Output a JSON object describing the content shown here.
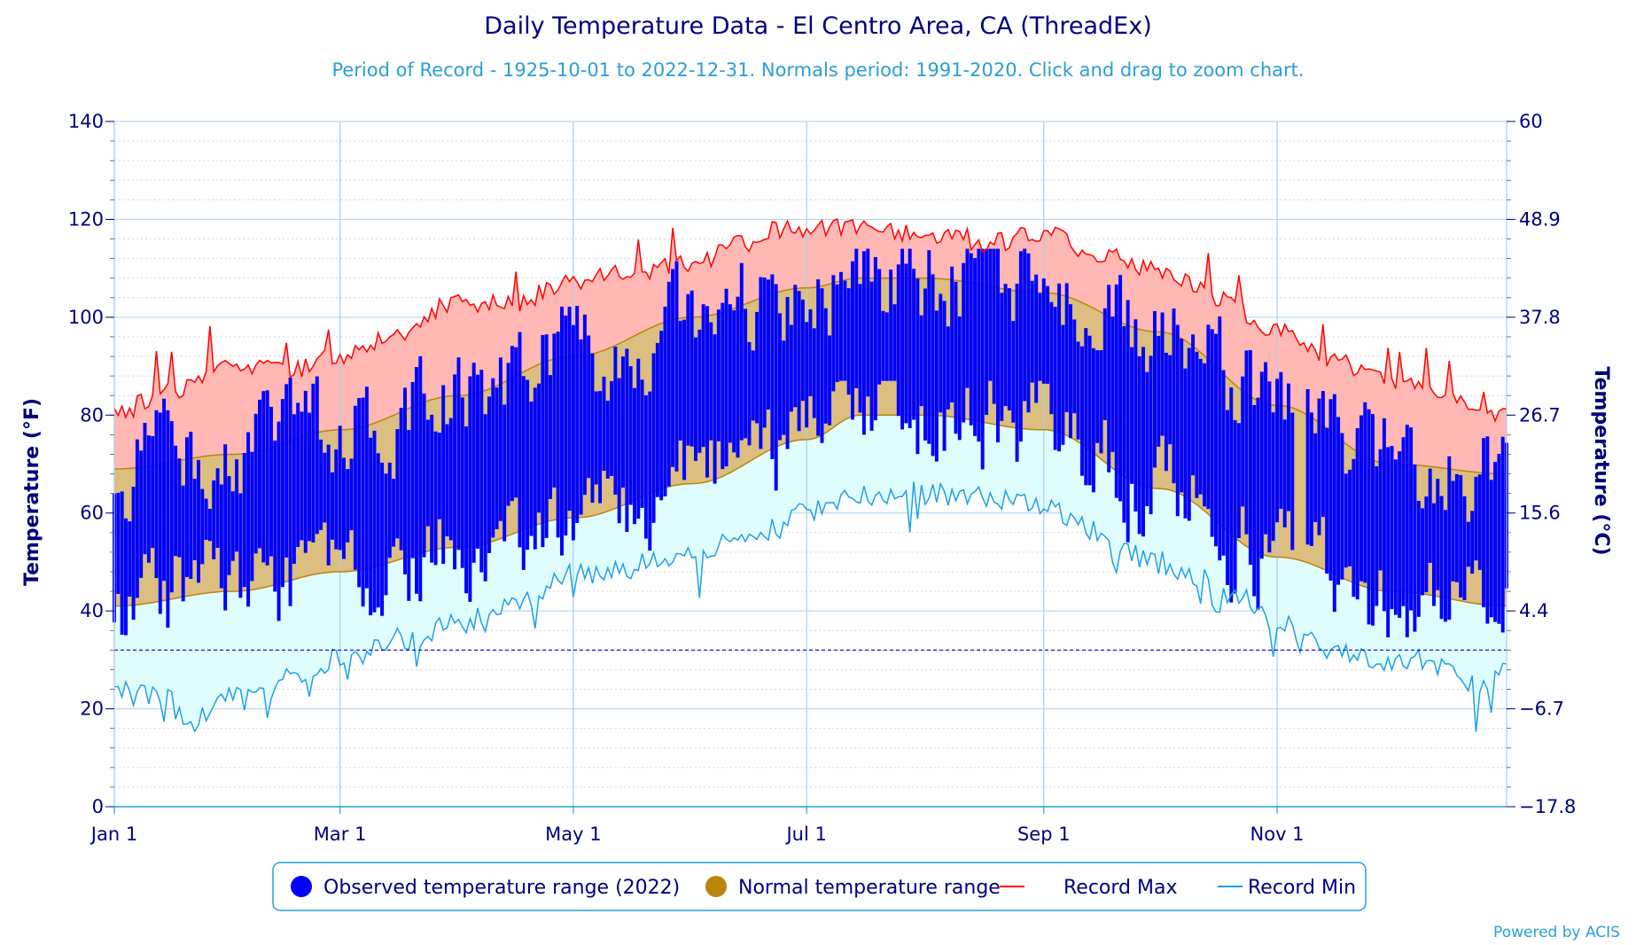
{
  "chart_data": {
    "type": "area",
    "title": "Daily Temperature Data - El Centro Area, CA (ThreadEx)",
    "subtitle": "Period of Record - 1925-10-01 to 2022-12-31. Normals period: 1991-2020. Click and drag to zoom chart.",
    "ylabel_left": "Temperature (°F)",
    "ylabel_right": "Temperature (°C)",
    "xlabel": "",
    "ylim": [
      0,
      140
    ],
    "y_ticks_f": [
      "0",
      "20",
      "40",
      "60",
      "80",
      "100",
      "120",
      "140"
    ],
    "y_ticks_c": [
      "−17.8",
      "−6.7",
      "4.4",
      "15.6",
      "26.7",
      "37.8",
      "48.9",
      "60"
    ],
    "x_tick_labels": [
      "Jan 1",
      "Mar 1",
      "May 1",
      "Jul 1",
      "Sep 1",
      "Nov 1"
    ],
    "x_tick_days": [
      1,
      60,
      121,
      182,
      244,
      305
    ],
    "freezing_line_f": 32,
    "grid": true,
    "legend_position": "bottom-center",
    "series": [
      {
        "name": "Observed temperature range (2022)",
        "color": "#0000ff",
        "kind": "daily-range-bars"
      },
      {
        "name": "Normal temperature range",
        "color": "#b8860b",
        "fill": "#d4b06a",
        "kind": "band"
      },
      {
        "name": "Record Max",
        "color": "#ff0000",
        "kind": "line"
      },
      {
        "name": "Record Min",
        "color": "#1ea0e6",
        "kind": "line"
      }
    ],
    "record_max_keypoints": {
      "day": [
        1,
        15,
        32,
        46,
        60,
        75,
        90,
        105,
        121,
        135,
        152,
        166,
        175,
        182,
        196,
        213,
        228,
        244,
        258,
        274,
        290,
        305,
        320,
        335,
        350,
        358,
        365
      ],
      "value": [
        80,
        85,
        90,
        89,
        92,
        97,
        103,
        103,
        107,
        109,
        111,
        115,
        118,
        118,
        119,
        117,
        115,
        117,
        113,
        110,
        104,
        97,
        91,
        87,
        84,
        81,
        80
      ]
    },
    "record_min_keypoints": {
      "day": [
        1,
        15,
        20,
        32,
        46,
        55,
        60,
        75,
        90,
        105,
        121,
        135,
        152,
        166,
        175,
        182,
        196,
        213,
        228,
        244,
        258,
        274,
        287,
        295,
        305,
        320,
        335,
        350,
        358,
        365
      ],
      "value": [
        25,
        22,
        16,
        24,
        27,
        29,
        30,
        34,
        37,
        42,
        47,
        49,
        52,
        55,
        57,
        60,
        64,
        64,
        63,
        62,
        56,
        50,
        46,
        43,
        38,
        32,
        30,
        29,
        24,
        27
      ]
    },
    "normal_high_keypoints": {
      "day": [
        1,
        32,
        60,
        91,
        121,
        152,
        182,
        196,
        213,
        244,
        274,
        305,
        335,
        365
      ],
      "value": [
        69,
        72,
        77,
        84,
        92,
        100,
        106,
        108,
        108,
        105,
        97,
        82,
        70,
        68
      ]
    },
    "normal_low_keypoints": {
      "day": [
        1,
        32,
        60,
        91,
        121,
        152,
        182,
        196,
        213,
        244,
        274,
        305,
        335,
        365
      ],
      "value": [
        41,
        44,
        48,
        53,
        59,
        66,
        75,
        80,
        80,
        77,
        65,
        51,
        44,
        41
      ]
    },
    "observed_2022_envelope": {
      "note": "daily high/low bars approximate; highs fluctuate around normal high, lows around normal low",
      "high_range": [
        55,
        114
      ],
      "low_range": [
        31,
        87
      ]
    }
  },
  "footer": {
    "credit": "Powered by ACIS"
  }
}
